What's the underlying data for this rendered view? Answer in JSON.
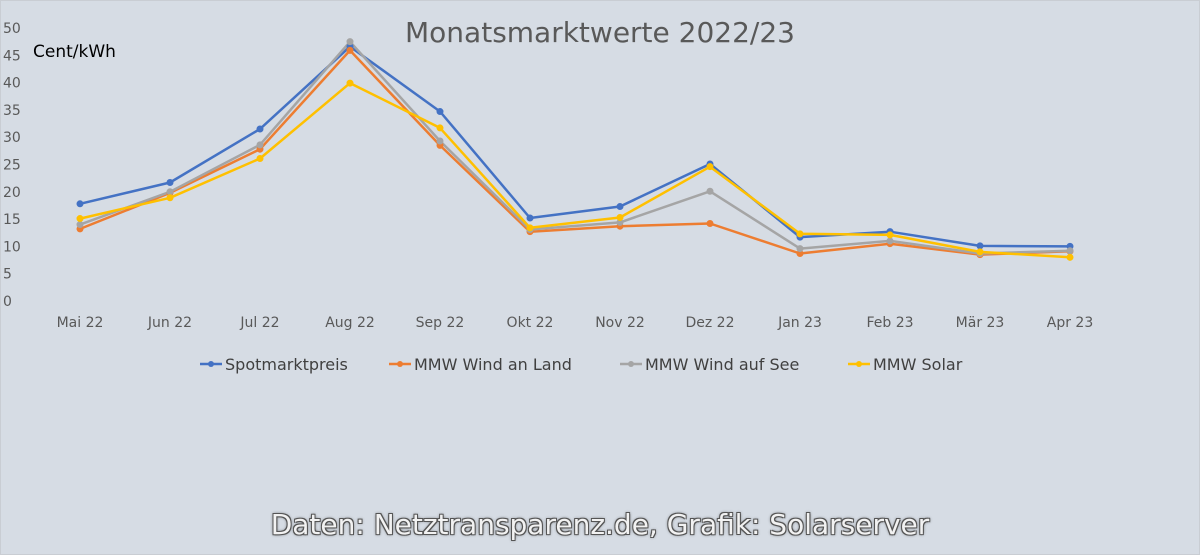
{
  "chart_data": {
    "type": "line",
    "title": "Monatsmarktwerte 2022/23",
    "ylabel": "Cent/kWh",
    "xlabel": "",
    "ylim": [
      0,
      50
    ],
    "yticks": [
      0,
      5,
      10,
      15,
      20,
      25,
      30,
      35,
      40,
      45,
      50
    ],
    "grid": false,
    "legend_position": "bottom",
    "categories": [
      "Mai 22",
      "Jun 22",
      "Jul 22",
      "Aug 22",
      "Sep 22",
      "Okt 22",
      "Nov 22",
      "Dez 22",
      "Jan 23",
      "Feb 23",
      "Mär 23",
      "Apr 23"
    ],
    "series": [
      {
        "name": "Spotmarktpreis",
        "color": "#4472c4",
        "values": [
          17.8,
          21.7,
          31.5,
          46.6,
          34.7,
          15.2,
          17.3,
          25.1,
          11.7,
          12.7,
          10.1,
          10.0
        ]
      },
      {
        "name": "MMW Wind an Land",
        "color": "#ed7d31",
        "values": [
          13.2,
          19.8,
          27.8,
          45.9,
          28.5,
          12.7,
          13.7,
          14.2,
          8.7,
          10.5,
          8.5,
          9.1
        ]
      },
      {
        "name": "MMW Wind auf See",
        "color": "#a5a5a5",
        "values": [
          14.0,
          20.0,
          28.6,
          47.5,
          29.3,
          13.1,
          14.4,
          20.1,
          9.6,
          11.0,
          8.7,
          9.2
        ]
      },
      {
        "name": "MMW Solar",
        "color": "#ffc000",
        "values": [
          15.1,
          18.9,
          26.1,
          39.9,
          31.7,
          13.4,
          15.3,
          24.6,
          12.3,
          12.1,
          9.0,
          8.0
        ]
      }
    ]
  },
  "footer": {
    "credit": "Daten: Netztransparenz.de, Grafik: Solarserver"
  }
}
